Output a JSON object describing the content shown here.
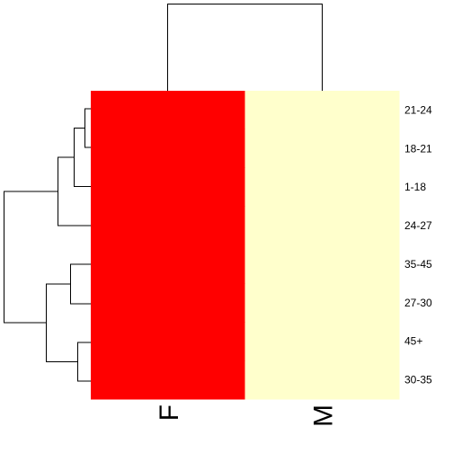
{
  "chart_data": {
    "type": "heatmap",
    "columns": [
      "F",
      "M"
    ],
    "rows": [
      "21-24",
      "18-21",
      "1-18",
      "24-27",
      "35-45",
      "27-30",
      "45+",
      "30-35"
    ],
    "values": [
      [
        1,
        0
      ],
      [
        1,
        0
      ],
      [
        1,
        0
      ],
      [
        1,
        0
      ],
      [
        1,
        0
      ],
      [
        1,
        0
      ],
      [
        1,
        0
      ],
      [
        1,
        0
      ]
    ],
    "colors": {
      "high": "#ff0000",
      "low": "#ffffcc"
    },
    "dendrograms": {
      "rows": true,
      "columns": true
    }
  }
}
